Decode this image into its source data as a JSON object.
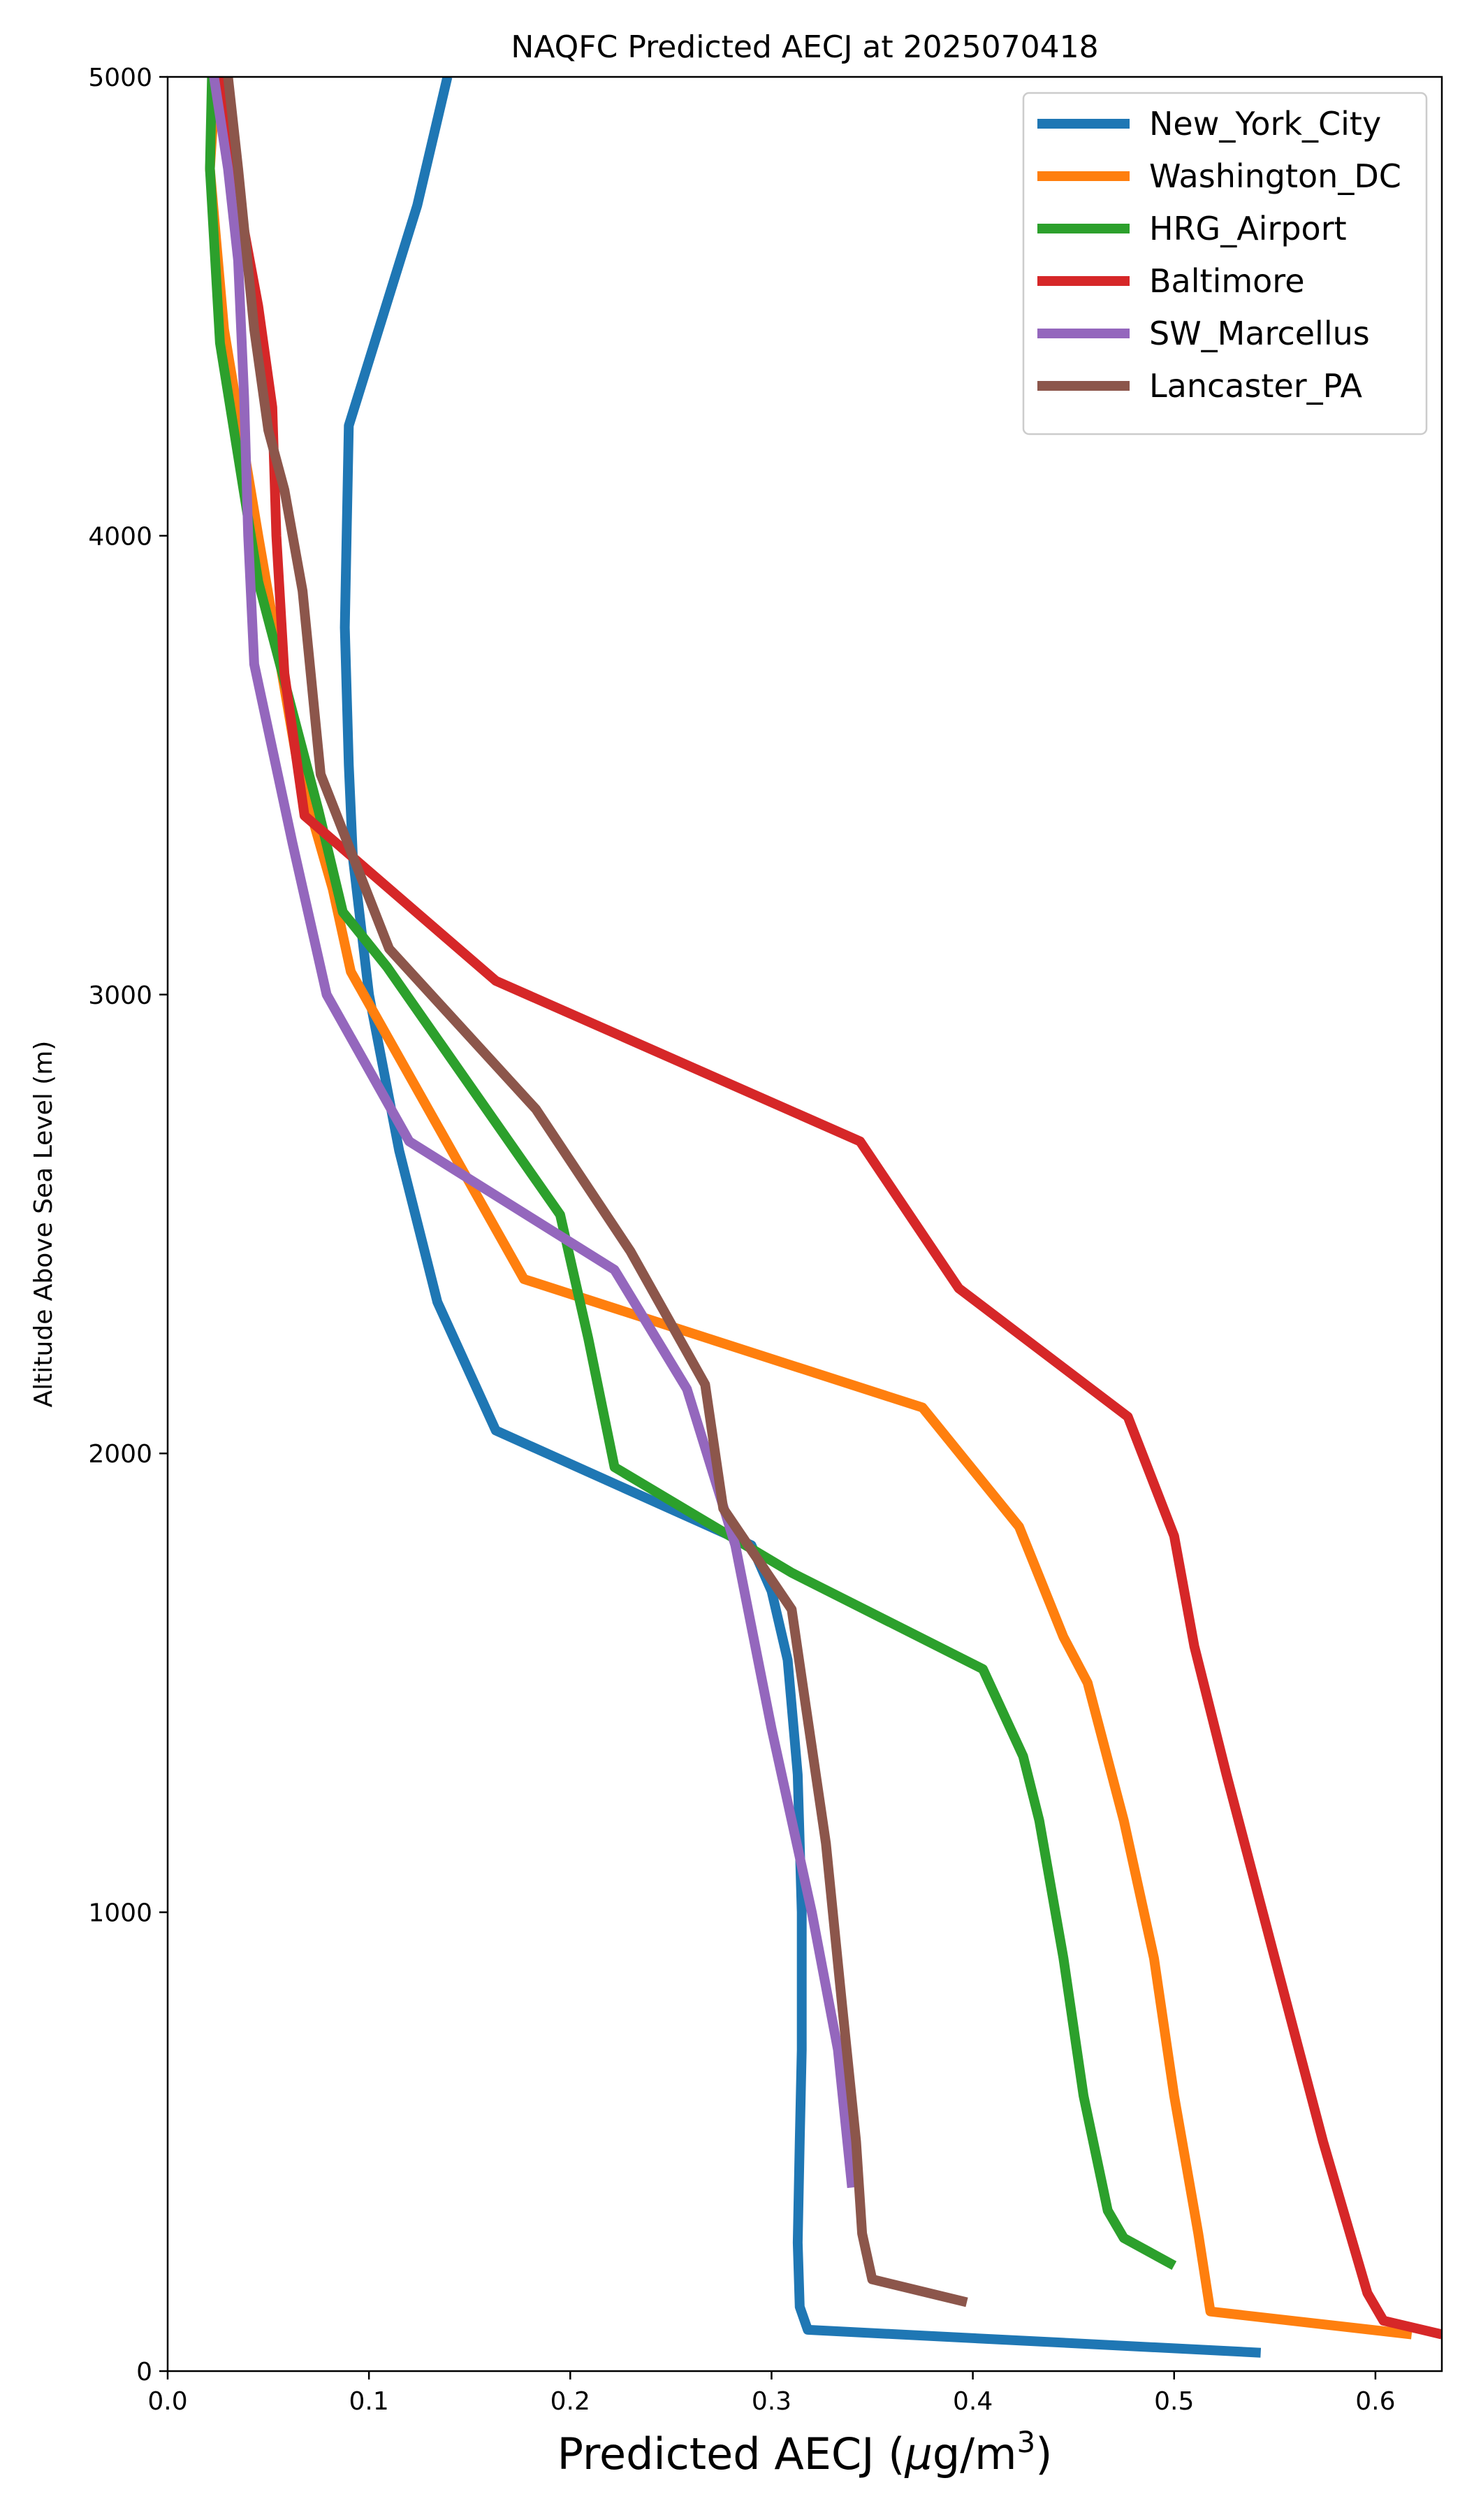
{
  "chart_data": {
    "type": "line",
    "title": "NAQFC Predicted AECJ at 2025070418",
    "xlabel": "Predicted AECJ (",
    "xlabel_mu": "μ",
    "xlabel_unit": "g/m",
    "xlabel_sup": "3",
    "xlabel_close": ")",
    "ylabel": "Altitude Above Sea Level (m)",
    "xlim": [
      0,
      0.633
    ],
    "ylim": [
      0,
      5000
    ],
    "xticks": [
      0.0,
      0.1,
      0.2,
      0.3,
      0.4,
      0.5,
      0.6
    ],
    "xtick_labels": [
      "0.0",
      "0.1",
      "0.2",
      "0.3",
      "0.4",
      "0.5",
      "0.6"
    ],
    "yticks": [
      0,
      1000,
      2000,
      3000,
      4000,
      5000
    ],
    "ytick_labels": [
      "0",
      "1000",
      "2000",
      "3000",
      "4000",
      "5000"
    ],
    "grid": false,
    "legend_position": "top-right",
    "series": [
      {
        "name": "New_York_City",
        "color": "#1f77b4",
        "points": [
          [
            0.543,
            40
          ],
          [
            0.318,
            90
          ],
          [
            0.314,
            140
          ],
          [
            0.313,
            280
          ],
          [
            0.314,
            500
          ],
          [
            0.315,
            700
          ],
          [
            0.315,
            1000
          ],
          [
            0.313,
            1300
          ],
          [
            0.308,
            1550
          ],
          [
            0.3,
            1700
          ],
          [
            0.29,
            1800
          ],
          [
            0.163,
            2050
          ],
          [
            0.134,
            2330
          ],
          [
            0.115,
            2660
          ],
          [
            0.1,
            3000
          ],
          [
            0.092,
            3300
          ],
          [
            0.09,
            3500
          ],
          [
            0.088,
            3800
          ],
          [
            0.09,
            4240
          ],
          [
            0.124,
            4720
          ],
          [
            0.139,
            5000
          ]
        ]
      },
      {
        "name": "Washington_DC",
        "color": "#ff7f0e",
        "points": [
          [
            0.618,
            80
          ],
          [
            0.518,
            130
          ],
          [
            0.512,
            300
          ],
          [
            0.5,
            600
          ],
          [
            0.49,
            900
          ],
          [
            0.475,
            1200
          ],
          [
            0.457,
            1500
          ],
          [
            0.445,
            1600
          ],
          [
            0.423,
            1840
          ],
          [
            0.375,
            2100
          ],
          [
            0.177,
            2380
          ],
          [
            0.091,
            3050
          ],
          [
            0.082,
            3230
          ],
          [
            0.065,
            3490
          ],
          [
            0.045,
            4000
          ],
          [
            0.028,
            4450
          ],
          [
            0.021,
            4800
          ],
          [
            0.024,
            5000
          ]
        ]
      },
      {
        "name": "HRG_Airport",
        "color": "#2ca02c",
        "points": [
          [
            0.5,
            230
          ],
          [
            0.475,
            290
          ],
          [
            0.467,
            350
          ],
          [
            0.455,
            600
          ],
          [
            0.445,
            900
          ],
          [
            0.433,
            1200
          ],
          [
            0.425,
            1340
          ],
          [
            0.405,
            1530
          ],
          [
            0.31,
            1740
          ],
          [
            0.222,
            1970
          ],
          [
            0.209,
            2250
          ],
          [
            0.195,
            2520
          ],
          [
            0.109,
            3060
          ],
          [
            0.087,
            3180
          ],
          [
            0.075,
            3400
          ],
          [
            0.045,
            3900
          ],
          [
            0.026,
            4420
          ],
          [
            0.021,
            4800
          ],
          [
            0.022,
            5000
          ]
        ]
      },
      {
        "name": "Baltimore",
        "color": "#d62728",
        "points": [
          [
            0.633,
            80
          ],
          [
            0.604,
            110
          ],
          [
            0.596,
            170
          ],
          [
            0.574,
            500
          ],
          [
            0.55,
            900
          ],
          [
            0.526,
            1300
          ],
          [
            0.51,
            1580
          ],
          [
            0.5,
            1820
          ],
          [
            0.477,
            2080
          ],
          [
            0.393,
            2360
          ],
          [
            0.344,
            2680
          ],
          [
            0.163,
            3030
          ],
          [
            0.068,
            3390
          ],
          [
            0.058,
            3700
          ],
          [
            0.054,
            4000
          ],
          [
            0.052,
            4280
          ],
          [
            0.045,
            4500
          ],
          [
            0.034,
            4760
          ],
          [
            0.027,
            5000
          ]
        ]
      },
      {
        "name": "SW_Marcellus",
        "color": "#9467bd",
        "points": [
          [
            0.34,
            400
          ],
          [
            0.333,
            700
          ],
          [
            0.32,
            1000
          ],
          [
            0.3,
            1400
          ],
          [
            0.282,
            1800
          ],
          [
            0.258,
            2140
          ],
          [
            0.222,
            2400
          ],
          [
            0.12,
            2680
          ],
          [
            0.079,
            3000
          ],
          [
            0.062,
            3330
          ],
          [
            0.043,
            3720
          ],
          [
            0.04,
            4000
          ],
          [
            0.038,
            4300
          ],
          [
            0.035,
            4600
          ],
          [
            0.03,
            4800
          ],
          [
            0.023,
            5000
          ]
        ]
      },
      {
        "name": "Lancaster_PA",
        "color": "#8c564b",
        "points": [
          [
            0.397,
            150
          ],
          [
            0.35,
            200
          ],
          [
            0.345,
            300
          ],
          [
            0.342,
            500
          ],
          [
            0.335,
            800
          ],
          [
            0.327,
            1150
          ],
          [
            0.317,
            1450
          ],
          [
            0.31,
            1660
          ],
          [
            0.276,
            1880
          ],
          [
            0.267,
            2150
          ],
          [
            0.23,
            2440
          ],
          [
            0.183,
            2750
          ],
          [
            0.11,
            3100
          ],
          [
            0.076,
            3480
          ],
          [
            0.067,
            3880
          ],
          [
            0.058,
            4100
          ],
          [
            0.05,
            4230
          ],
          [
            0.043,
            4450
          ],
          [
            0.035,
            4800
          ],
          [
            0.03,
            5000
          ]
        ]
      }
    ]
  }
}
